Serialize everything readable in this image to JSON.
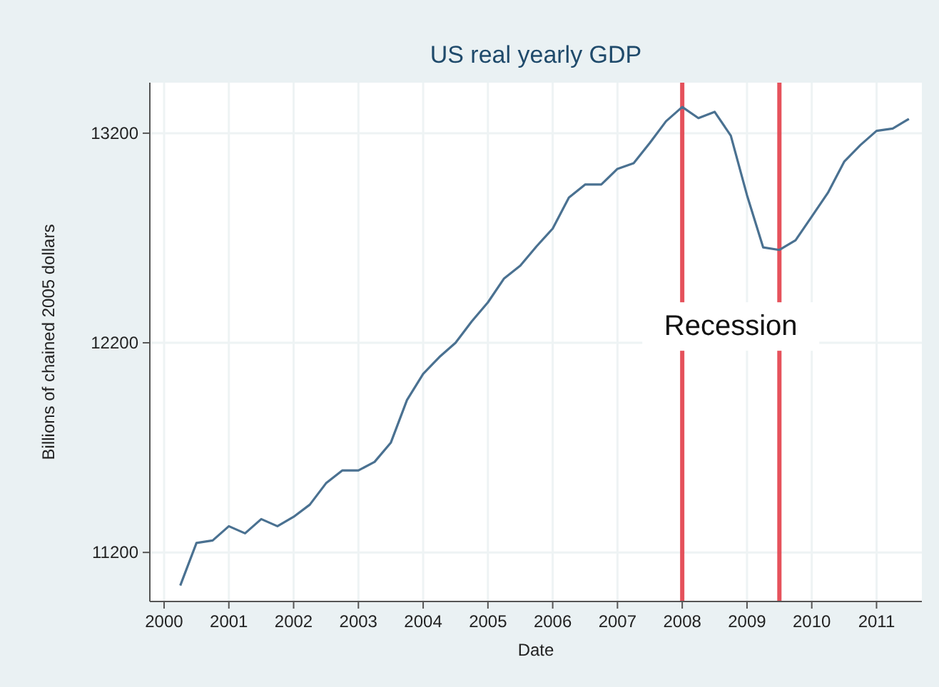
{
  "chart_data": {
    "type": "line",
    "title": "US real yearly GDP",
    "xlabel": "Date",
    "ylabel": "Billions of chained 2005 dollars",
    "x": [
      2000.25,
      2000.5,
      2000.75,
      2001,
      2001.25,
      2001.5,
      2001.75,
      2002,
      2002.25,
      2002.5,
      2002.75,
      2003,
      2003.25,
      2003.5,
      2003.75,
      2004,
      2004.25,
      2004.5,
      2004.75,
      2005,
      2005.25,
      2005.5,
      2005.75,
      2006,
      2006.25,
      2006.5,
      2006.75,
      2007,
      2007.25,
      2007.5,
      2007.75,
      2008,
      2008.25,
      2008.5,
      2008.75,
      2009,
      2009.25,
      2009.5,
      2009.75,
      2010,
      2010.25,
      2010.5,
      2010.75,
      2011,
      2011.25,
      2011.5
    ],
    "series": [
      {
        "color": "#4a7191",
        "values": [
          11042,
          11245,
          11257,
          11325,
          11291,
          11359,
          11325,
          11370,
          11428,
          11530,
          11591,
          11591,
          11632,
          11723,
          11927,
          12052,
          12132,
          12200,
          12302,
          12393,
          12507,
          12568,
          12660,
          12745,
          12893,
          12955,
          12955,
          13030,
          13057,
          13154,
          13257,
          13325,
          13272,
          13302,
          13188,
          12904,
          12655,
          12643,
          12689,
          12802,
          12916,
          13064,
          13143,
          13211,
          13222,
          13268
        ]
      }
    ],
    "xlim": [
      1999.78,
      2011.7
    ],
    "xticks": [
      2000,
      2001,
      2002,
      2003,
      2004,
      2005,
      2006,
      2007,
      2008,
      2009,
      2010,
      2011
    ],
    "ylim": [
      10966,
      13441
    ],
    "yticks": [
      11200,
      12200,
      13200
    ],
    "grid": true,
    "marker": "none",
    "line_style": "solid",
    "ref_lines": [
      {
        "axis": "x",
        "value": 2008,
        "color": "#e2343f"
      },
      {
        "axis": "x",
        "value": 2009.5,
        "color": "#e2343f"
      }
    ],
    "annotations": [
      "Recession"
    ]
  }
}
